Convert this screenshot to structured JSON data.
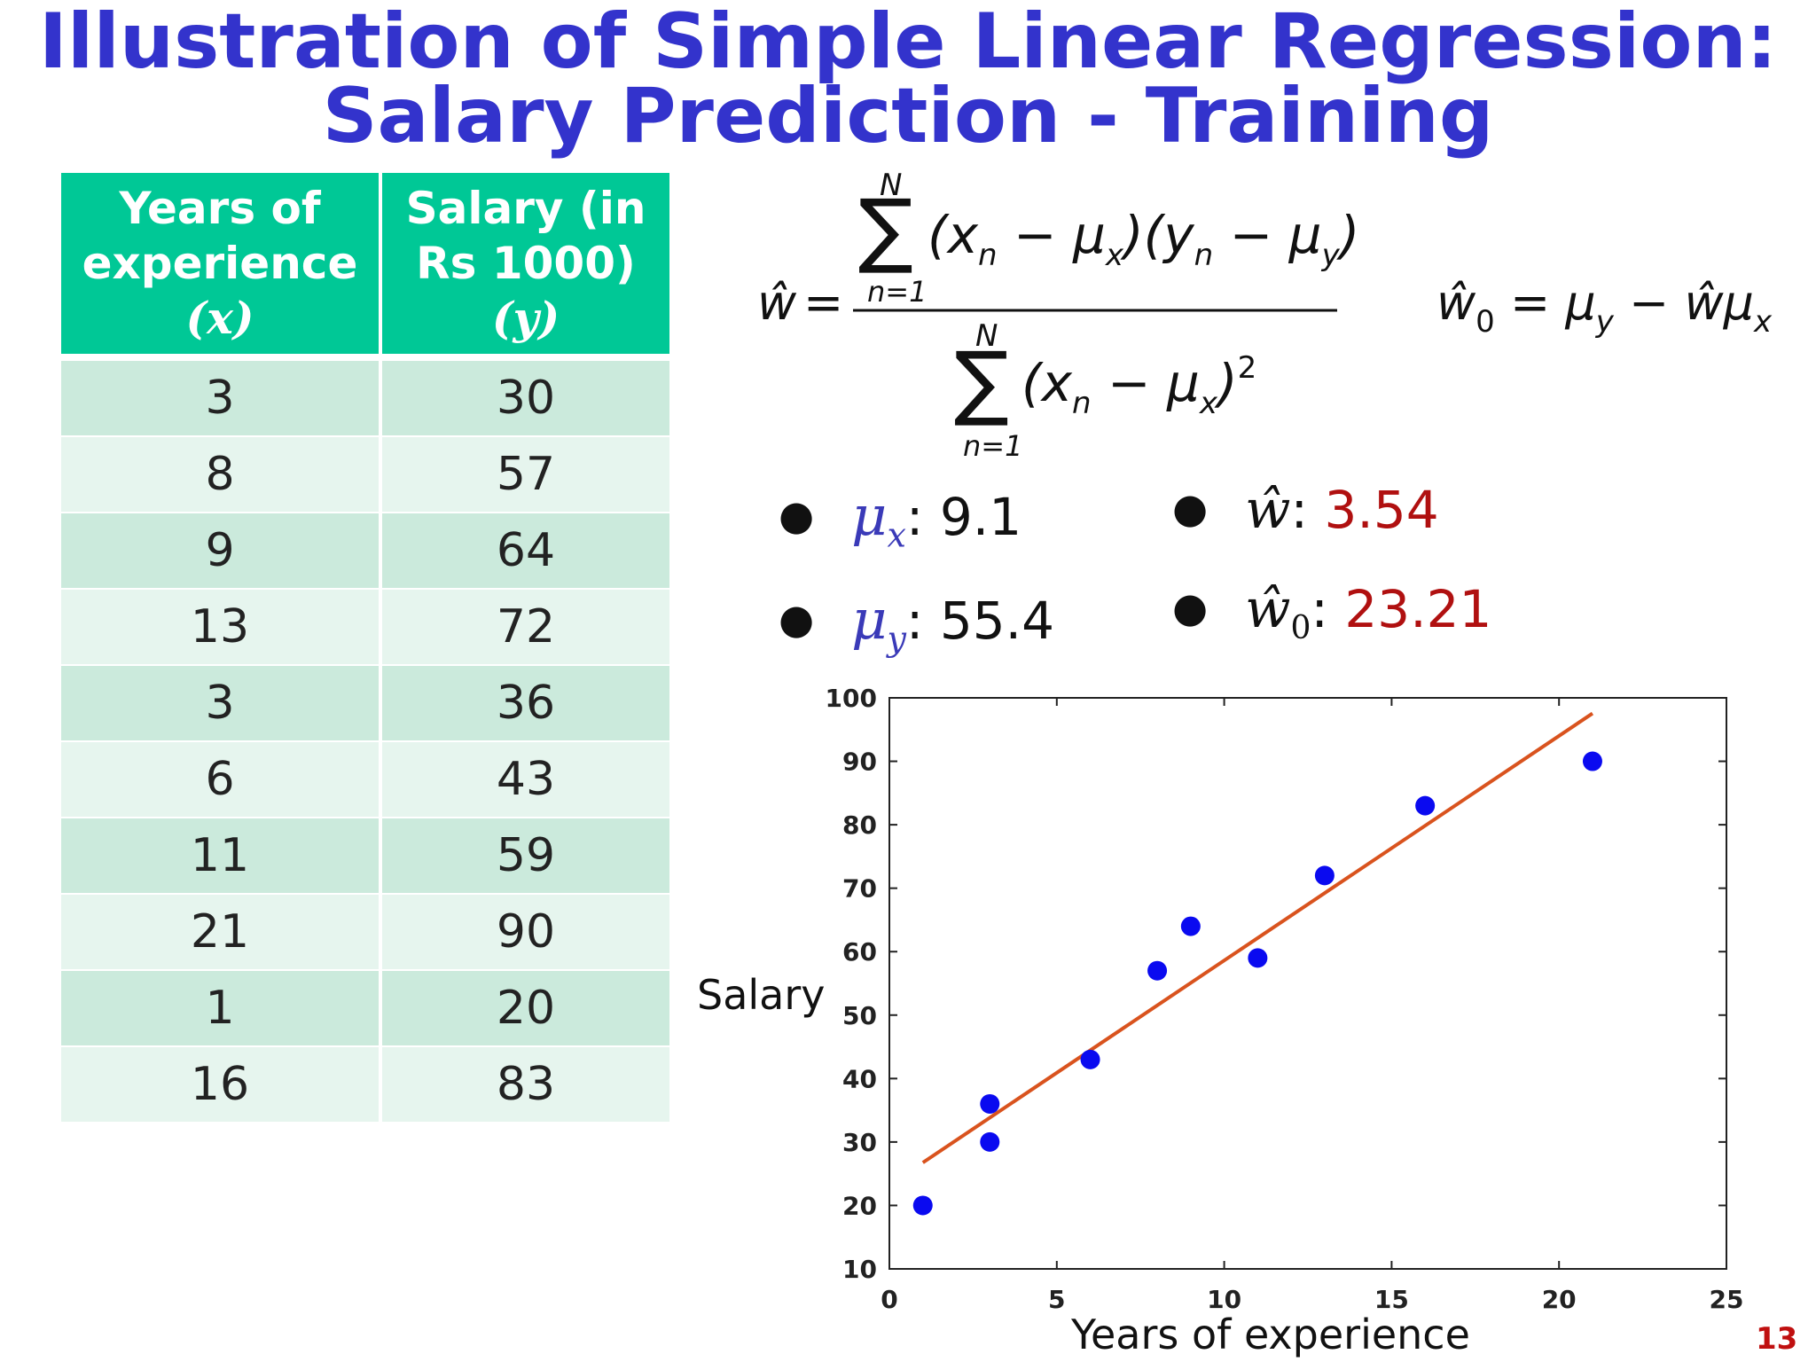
{
  "title": {
    "line1": "Illustration of Simple Linear Regression:",
    "line2": "Salary Prediction - Training"
  },
  "table": {
    "headers": {
      "col1_line1": "Years of",
      "col1_line2": "experience",
      "col1_var": "(x)",
      "col2_line1": "Salary (in",
      "col2_line2": "Rs 1000)",
      "col2_var": "(y)"
    },
    "rows": [
      {
        "x": "3",
        "y": "30"
      },
      {
        "x": "8",
        "y": "57"
      },
      {
        "x": "9",
        "y": "64"
      },
      {
        "x": "13",
        "y": "72"
      },
      {
        "x": "3",
        "y": "36"
      },
      {
        "x": "6",
        "y": "43"
      },
      {
        "x": "11",
        "y": "59"
      },
      {
        "x": "21",
        "y": "90"
      },
      {
        "x": "1",
        "y": "20"
      },
      {
        "x": "16",
        "y": "83"
      }
    ]
  },
  "stats": {
    "mu_x_label": "μ",
    "mu_x_sub": "x",
    "mu_x_value": ": 9.1",
    "mu_y_label": "μ",
    "mu_y_sub": "y",
    "mu_y_value": ": 55.4",
    "w_label": "ŵ",
    "w_value": "3.54",
    "w0_label": "ŵ",
    "w0_sub": "0",
    "w0_value": "23.21",
    "colon": ": "
  },
  "formula": {
    "w_hat": "ŵ",
    "equals": "=",
    "sum_upper": "N",
    "sum_lower": "n=1",
    "numerator": "(x",
    "w0_eq": "ŵ",
    "n": "n",
    "x": "x",
    "y": "y",
    "mu": "μ",
    "minus": "−",
    "squared": "2",
    "zero": "0"
  },
  "chart_data": {
    "type": "scatter",
    "title": "",
    "xlabel": "Years of experience",
    "ylabel": "Salary",
    "xlim": [
      0,
      25
    ],
    "ylim": [
      10,
      100
    ],
    "xticks": [
      0,
      5,
      10,
      15,
      20,
      25
    ],
    "yticks": [
      10,
      20,
      30,
      40,
      50,
      60,
      70,
      80,
      90,
      100
    ],
    "grid": false,
    "points": [
      {
        "x": 3,
        "y": 30
      },
      {
        "x": 8,
        "y": 57
      },
      {
        "x": 9,
        "y": 64
      },
      {
        "x": 13,
        "y": 72
      },
      {
        "x": 3,
        "y": 36
      },
      {
        "x": 6,
        "y": 43
      },
      {
        "x": 11,
        "y": 59
      },
      {
        "x": 21,
        "y": 90
      },
      {
        "x": 1,
        "y": 20
      },
      {
        "x": 16,
        "y": 83
      }
    ],
    "fit_line": {
      "slope": 3.54,
      "intercept": 23.21,
      "x_range": [
        1,
        21
      ]
    },
    "colors": {
      "points": "#0a0af0",
      "line": "#d9531e",
      "axes": "#222222"
    }
  },
  "page_number": "13"
}
